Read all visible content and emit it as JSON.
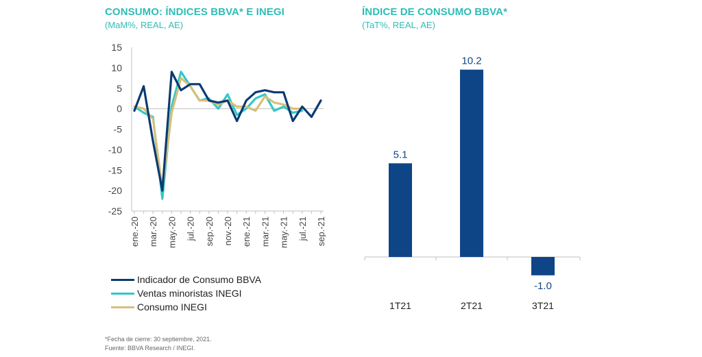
{
  "colors": {
    "navy": "#0a3a72",
    "teal": "#33c7c6",
    "gold": "#d6c07c",
    "title": "#2dbdb6",
    "bar": "#0e4587"
  },
  "left_chart": {
    "title": "CONSUMO: ÍNDICES BBVA* E INEGI",
    "subtitle": "(MaM%, REAL, AE)"
  },
  "right_chart": {
    "title": "ÍNDICE DE CONSUMO BBVA*",
    "subtitle": "(TaT%, REAL, AE)"
  },
  "legend": {
    "items": [
      {
        "label": "Indicador de Consumo BBVA"
      },
      {
        "label": "Ventas minoristas INEGI"
      },
      {
        "label": "Consumo INEGI"
      }
    ]
  },
  "footnote": {
    "line1": "*Fecha de cierre: 30 septiembre, 2021.",
    "line2": "Fuente: BBVA Research / INEGI."
  },
  "chart_data": [
    {
      "type": "line",
      "title": "CONSUMO: ÍNDICES BBVA* E INEGI",
      "subtitle": "(MaM%, REAL, AE)",
      "x": [
        "ene.-20",
        "feb.-20",
        "mar.-20",
        "abr.-20",
        "may.-20",
        "jun.-20",
        "jul.-20",
        "ago.-20",
        "sep.-20",
        "oct.-20",
        "nov.-20",
        "dic.-20",
        "ene.-21",
        "feb.-21",
        "mar.-21",
        "abr.-21",
        "may.-21",
        "jun.-21",
        "jul.-21",
        "ago.-21",
        "sep.-21"
      ],
      "tick_labels": [
        "ene.-20",
        "mar.-20",
        "may.-20",
        "jul.-20",
        "sep.-20",
        "nov.-20",
        "ene.-21",
        "mar.-21",
        "may.-21",
        "jul.-21",
        "sep.-21"
      ],
      "ylim": [
        -25,
        15
      ],
      "yticks": [
        15,
        10,
        5,
        0,
        -5,
        -10,
        -15,
        -20,
        -25
      ],
      "series": [
        {
          "name": "Ventas minoristas INEGI",
          "color": "#33c7c6",
          "values": [
            0.5,
            -1.0,
            -2.0,
            -22.0,
            0.5,
            9.0,
            5.5,
            2.0,
            2.5,
            0.0,
            3.5,
            -1.5,
            0.0,
            2.5,
            3.5,
            -0.5,
            0.5,
            -1.0,
            -0.5,
            null,
            null
          ]
        },
        {
          "name": "Consumo INEGI",
          "color": "#d6c07c",
          "values": [
            0.5,
            0.0,
            -2.5,
            -19.5,
            -1.0,
            7.5,
            5.5,
            2.0,
            2.0,
            1.0,
            2.0,
            0.5,
            0.5,
            -0.5,
            3.0,
            1.5,
            1.0,
            0.0,
            0.0,
            null,
            null
          ]
        },
        {
          "name": "Indicador de Consumo BBVA",
          "color": "#0a3a72",
          "values": [
            -0.5,
            5.5,
            -8.0,
            -20.0,
            9.0,
            4.5,
            6.0,
            6.0,
            2.0,
            1.5,
            2.0,
            -3.0,
            2.0,
            4.0,
            4.5,
            4.0,
            4.0,
            -3.0,
            0.5,
            -2.0,
            2.0
          ]
        }
      ]
    },
    {
      "type": "bar",
      "title": "ÍNDICE DE CONSUMO BBVA*",
      "subtitle": "(TaT%, REAL, AE)",
      "categories": [
        "1T21",
        "2T21",
        "3T21"
      ],
      "values": [
        5.1,
        10.2,
        -1.0
      ],
      "labels": [
        "5.1",
        "10.2",
        "-1.0"
      ]
    }
  ]
}
